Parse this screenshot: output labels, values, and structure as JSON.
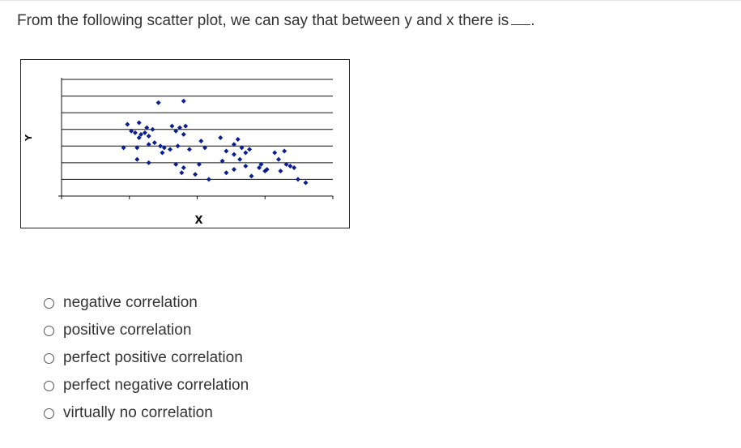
{
  "question": {
    "text": "From the following scatter plot, we can say that between y and x there is",
    "blank_suffix": "."
  },
  "chart_data": {
    "type": "scatter",
    "xlabel": "X",
    "ylabel": "Y",
    "grid": true,
    "legend": "none",
    "xlim": [
      0,
      14
    ],
    "ylim": [
      0,
      7
    ],
    "marker_color": "#0a1f8f",
    "points": [
      [
        5.0,
        5.6
      ],
      [
        6.3,
        5.7
      ],
      [
        3.4,
        4.3
      ],
      [
        4.0,
        4.4
      ],
      [
        4.4,
        4.1
      ],
      [
        4.7,
        4.0
      ],
      [
        3.6,
        3.9
      ],
      [
        3.8,
        3.8
      ],
      [
        4.1,
        3.7
      ],
      [
        4.3,
        3.8
      ],
      [
        4.0,
        3.5
      ],
      [
        4.5,
        3.6
      ],
      [
        5.7,
        4.2
      ],
      [
        6.1,
        4.1
      ],
      [
        6.4,
        4.2
      ],
      [
        5.9,
        3.9
      ],
      [
        6.3,
        3.7
      ],
      [
        3.2,
        2.9
      ],
      [
        3.9,
        2.9
      ],
      [
        4.5,
        3.1
      ],
      [
        4.8,
        3.2
      ],
      [
        5.1,
        3.0
      ],
      [
        5.3,
        2.9
      ],
      [
        5.6,
        2.8
      ],
      [
        5.2,
        2.6
      ],
      [
        6.0,
        3.0
      ],
      [
        6.6,
        2.8
      ],
      [
        7.2,
        3.3
      ],
      [
        7.4,
        2.9
      ],
      [
        8.2,
        3.5
      ],
      [
        8.5,
        2.7
      ],
      [
        8.9,
        3.1
      ],
      [
        9.1,
        3.4
      ],
      [
        9.3,
        2.9
      ],
      [
        9.5,
        2.6
      ],
      [
        9.7,
        2.8
      ],
      [
        8.9,
        2.5
      ],
      [
        3.9,
        2.2
      ],
      [
        4.5,
        2.0
      ],
      [
        5.9,
        1.9
      ],
      [
        6.3,
        1.7
      ],
      [
        7.1,
        1.9
      ],
      [
        6.9,
        1.3
      ],
      [
        6.2,
        1.4
      ],
      [
        8.3,
        2.1
      ],
      [
        8.9,
        1.6
      ],
      [
        9.5,
        1.8
      ],
      [
        9.8,
        1.2
      ],
      [
        10.2,
        1.7
      ],
      [
        10.6,
        1.6
      ],
      [
        10.3,
        1.9
      ],
      [
        11.0,
        2.6
      ],
      [
        11.2,
        2.2
      ],
      [
        11.5,
        2.7
      ],
      [
        11.8,
        1.8
      ],
      [
        12.0,
        1.7
      ],
      [
        11.3,
        1.5
      ],
      [
        12.2,
        1.0
      ],
      [
        12.6,
        0.8
      ],
      [
        11.6,
        1.9
      ],
      [
        10.5,
        1.5
      ],
      [
        9.2,
        2.2
      ],
      [
        7.6,
        1.0
      ],
      [
        8.5,
        1.4
      ]
    ]
  },
  "options": [
    {
      "label": "negative correlation"
    },
    {
      "label": "positive correlation"
    },
    {
      "label": "perfect positive correlation"
    },
    {
      "label": "perfect negative correlation"
    },
    {
      "label": "virtually no correlation"
    }
  ]
}
